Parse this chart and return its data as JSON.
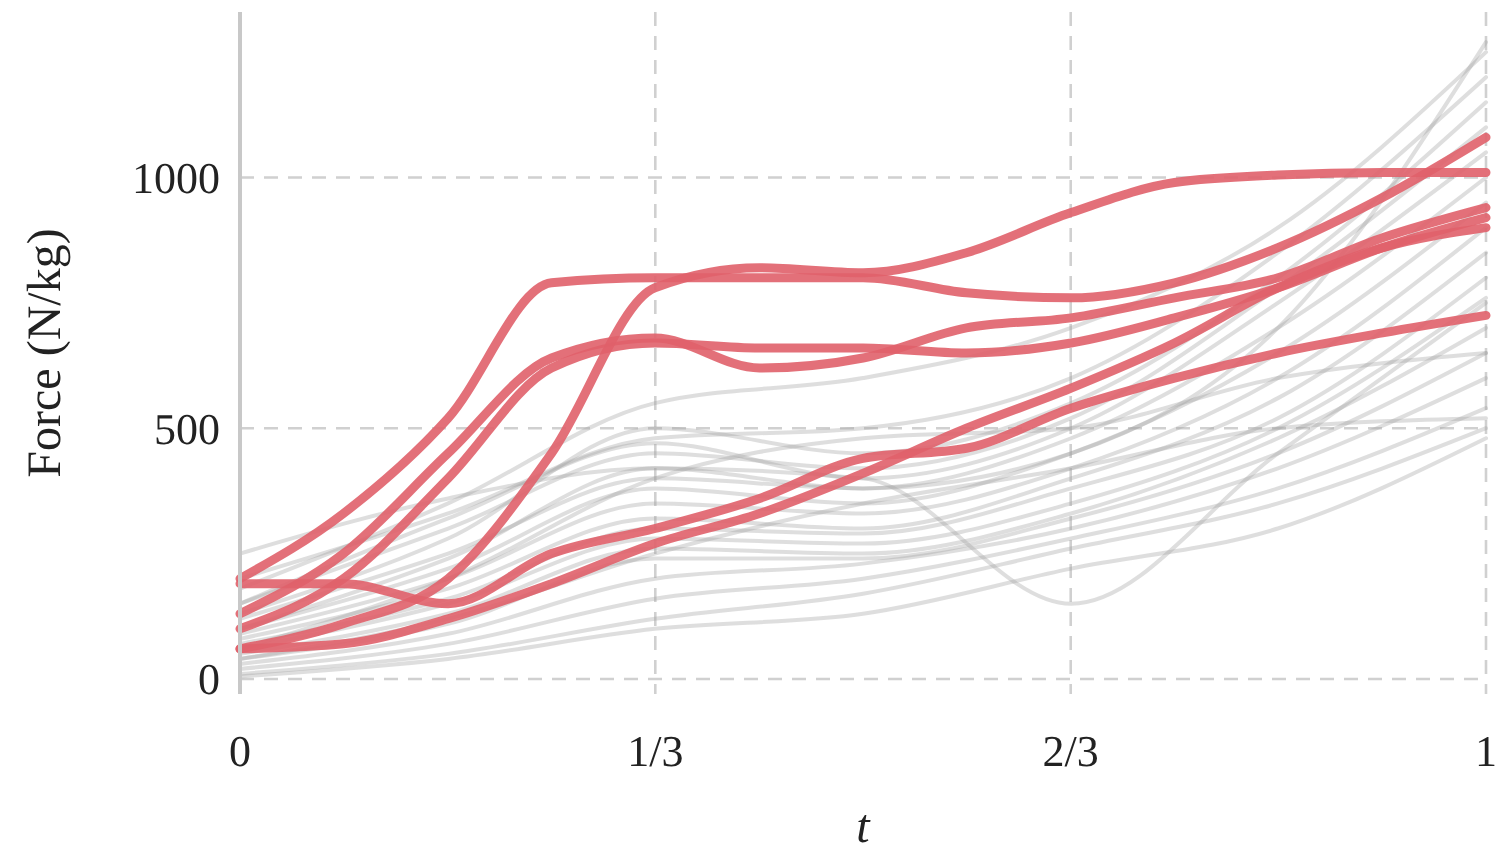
{
  "chart_data": {
    "type": "line",
    "xlabel": "t",
    "ylabel": "Force (N/kg)",
    "xlim": [
      0,
      1
    ],
    "ylim": [
      -30,
      1330
    ],
    "xticks": [
      0,
      {
        "value": 0.3333,
        "label": "1/3"
      },
      {
        "value": 0.6667,
        "label": "2/3"
      },
      1
    ],
    "yticks": [
      0,
      500,
      1000
    ],
    "grid": true,
    "line_style": "solid",
    "marker": "none",
    "x": [
      0,
      0.083,
      0.167,
      0.25,
      0.333,
      0.417,
      0.5,
      0.583,
      0.667,
      0.75,
      0.833,
      0.917,
      1
    ],
    "series": [
      {
        "color": "#a0a0a0",
        "x": [
          0,
          0.167,
          0.333,
          0.5,
          0.667,
          0.833,
          1
        ],
        "values": [
          250,
          360,
          420,
          380,
          450,
          700,
          1270
        ]
      },
      {
        "color": "#a0a0a0",
        "x": [
          0,
          0.167,
          0.333,
          0.5,
          0.667,
          0.833,
          1
        ],
        "values": [
          200,
          330,
          480,
          500,
          600,
          850,
          1200
        ]
      },
      {
        "color": "#a0a0a0",
        "x": [
          0,
          0.167,
          0.333,
          0.5,
          0.667,
          0.833,
          1
        ],
        "values": [
          150,
          300,
          450,
          420,
          520,
          780,
          1100
        ]
      },
      {
        "color": "#a0a0a0",
        "x": [
          0,
          0.167,
          0.333,
          0.5,
          0.667,
          0.833,
          1
        ],
        "values": [
          120,
          250,
          400,
          380,
          480,
          700,
          1000
        ]
      },
      {
        "color": "#a0a0a0",
        "x": [
          0,
          0.167,
          0.333,
          0.5,
          0.667,
          0.833,
          1
        ],
        "values": [
          100,
          220,
          380,
          350,
          450,
          650,
          950
        ]
      },
      {
        "color": "#a0a0a0",
        "x": [
          0,
          0.167,
          0.333,
          0.5,
          0.667,
          0.833,
          1
        ],
        "values": [
          90,
          200,
          350,
          330,
          420,
          600,
          900
        ]
      },
      {
        "color": "#a0a0a0",
        "x": [
          0,
          0.167,
          0.333,
          0.5,
          0.667,
          0.833,
          1
        ],
        "values": [
          80,
          180,
          320,
          300,
          400,
          560,
          850
        ]
      },
      {
        "color": "#a0a0a0",
        "x": [
          0,
          0.167,
          0.333,
          0.5,
          0.667,
          0.833,
          1
        ],
        "values": [
          70,
          160,
          300,
          290,
          380,
          520,
          800
        ]
      },
      {
        "color": "#a0a0a0",
        "x": [
          0,
          0.167,
          0.333,
          0.5,
          0.667,
          0.833,
          1
        ],
        "values": [
          60,
          150,
          280,
          270,
          350,
          500,
          760
        ]
      },
      {
        "color": "#a0a0a0",
        "x": [
          0,
          0.167,
          0.333,
          0.5,
          0.667,
          0.833,
          1
        ],
        "values": [
          50,
          130,
          260,
          250,
          330,
          480,
          700
        ]
      },
      {
        "color": "#a0a0a0",
        "x": [
          0,
          0.167,
          0.333,
          0.5,
          0.667,
          0.833,
          1
        ],
        "values": [
          40,
          110,
          240,
          240,
          320,
          450,
          650
        ]
      },
      {
        "color": "#a0a0a0",
        "x": [
          0,
          0.167,
          0.333,
          0.5,
          0.667,
          0.833,
          1
        ],
        "values": [
          30,
          90,
          200,
          230,
          300,
          420,
          600
        ]
      },
      {
        "color": "#a0a0a0",
        "x": [
          0,
          0.167,
          0.333,
          0.5,
          0.667,
          0.833,
          1
        ],
        "values": [
          20,
          70,
          160,
          200,
          280,
          380,
          540
        ]
      },
      {
        "color": "#a0a0a0",
        "x": [
          0,
          0.167,
          0.333,
          0.5,
          0.667,
          0.833,
          1
        ],
        "values": [
          10,
          50,
          120,
          170,
          260,
          350,
          500
        ]
      },
      {
        "color": "#a0a0a0",
        "x": [
          0,
          0.167,
          0.333,
          0.5,
          0.667,
          0.833,
          1
        ],
        "values": [
          100,
          240,
          420,
          400,
          150,
          450,
          750
        ]
      },
      {
        "color": "#a0a0a0",
        "x": [
          0,
          0.167,
          0.333,
          0.5,
          0.667,
          0.833,
          1
        ],
        "values": [
          180,
          350,
          550,
          600,
          700,
          900,
          1250
        ]
      },
      {
        "color": "#a0a0a0",
        "x": [
          0,
          0.167,
          0.333,
          0.5,
          0.667,
          0.833,
          1
        ],
        "values": [
          130,
          280,
          500,
          450,
          550,
          800,
          1150
        ]
      },
      {
        "color": "#a0a0a0",
        "x": [
          0,
          0.167,
          0.333,
          0.5,
          0.667,
          0.833,
          1
        ],
        "values": [
          60,
          200,
          400,
          480,
          500,
          600,
          650
        ]
      },
      {
        "color": "#a0a0a0",
        "x": [
          0,
          0.167,
          0.333,
          0.5,
          0.667,
          0.833,
          1
        ],
        "values": [
          40,
          120,
          250,
          350,
          420,
          500,
          520
        ]
      },
      {
        "color": "#a0a0a0",
        "x": [
          0,
          0.167,
          0.333,
          0.5,
          0.667,
          0.833,
          1
        ],
        "values": [
          150,
          320,
          470,
          400,
          500,
          750,
          1050
        ]
      },
      {
        "color": "#a0a0a0",
        "x": [
          0,
          0.167,
          0.333,
          0.5,
          0.667,
          0.833,
          1
        ],
        "values": [
          5,
          40,
          100,
          130,
          220,
          300,
          480
        ]
      },
      {
        "color": "#e0606a",
        "values": [
          200,
          330,
          520,
          790,
          800,
          800,
          800,
          770,
          760,
          790,
          860,
          960,
          1080
        ]
      },
      {
        "color": "#e0606a",
        "values": [
          60,
          110,
          200,
          450,
          780,
          820,
          810,
          850,
          930,
          990,
          1005,
          1010,
          1010
        ]
      },
      {
        "color": "#e0606a",
        "values": [
          130,
          250,
          450,
          640,
          680,
          620,
          640,
          700,
          720,
          760,
          800,
          880,
          940
        ]
      },
      {
        "color": "#e0606a",
        "values": [
          100,
          200,
          400,
          620,
          670,
          660,
          660,
          650,
          670,
          720,
          780,
          860,
          920
        ]
      },
      {
        "color": "#e0606a",
        "values": [
          190,
          190,
          150,
          250,
          300,
          360,
          440,
          460,
          540,
          600,
          650,
          690,
          725
        ]
      },
      {
        "color": "#e0606a",
        "values": [
          60,
          70,
          120,
          190,
          270,
          330,
          410,
          500,
          580,
          670,
          780,
          860,
          900
        ]
      }
    ]
  }
}
